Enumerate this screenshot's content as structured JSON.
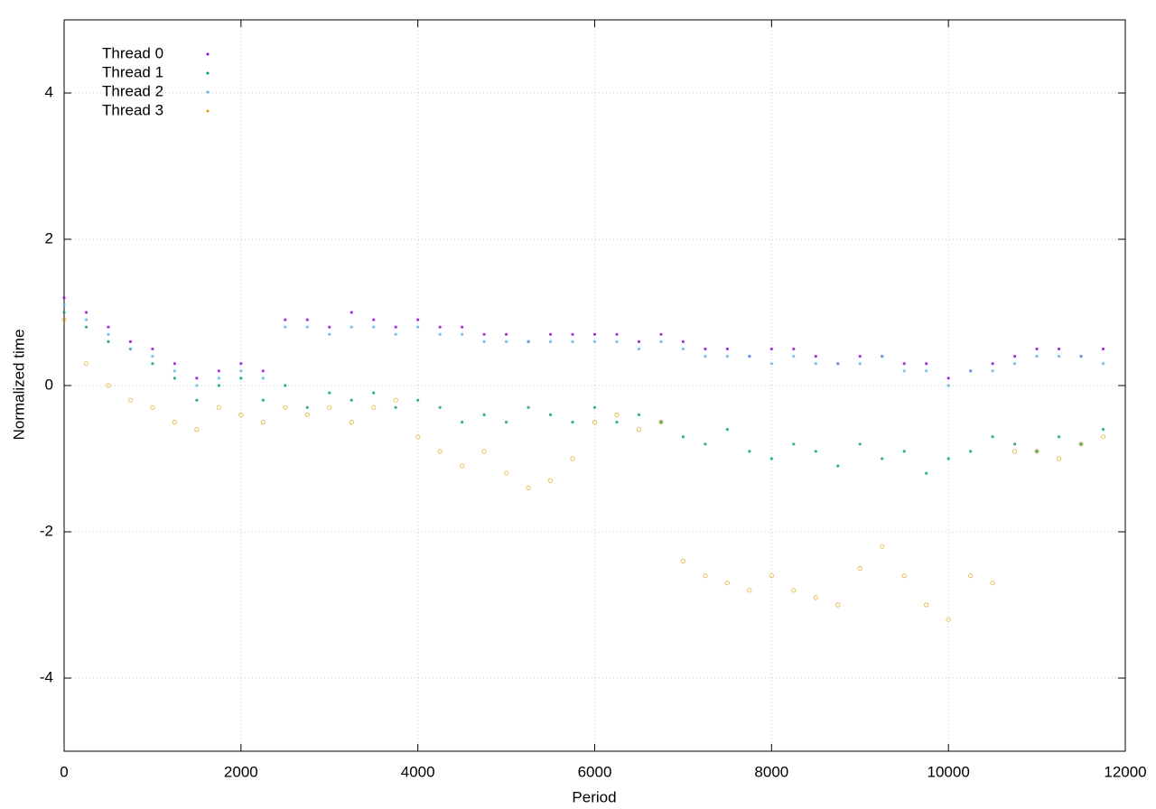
{
  "chart_data": {
    "type": "scatter",
    "x_label": "Period",
    "y_label": "Normalized time",
    "xlim": [
      0,
      12000
    ],
    "ylim": [
      -5,
      5
    ],
    "xticks": [
      0,
      2000,
      4000,
      6000,
      8000,
      10000,
      12000
    ],
    "yticks": [
      -4,
      -2,
      0,
      2,
      4
    ],
    "grid": true,
    "legend": "top-left",
    "x": [
      0,
      250,
      500,
      750,
      1000,
      1250,
      1500,
      1750,
      2000,
      2250,
      2500,
      2750,
      3000,
      3250,
      3500,
      3750,
      4000,
      4250,
      4500,
      4750,
      5000,
      5250,
      5500,
      5750,
      6000,
      6250,
      6500,
      6750,
      7000,
      7250,
      7500,
      7750,
      8000,
      8250,
      8500,
      8750,
      9000,
      9250,
      9500,
      9750,
      10000,
      10250,
      10500,
      10750,
      11000,
      11250,
      11500,
      11750
    ],
    "series": [
      {
        "name": "Thread 0",
        "color": "#9400d3",
        "values": [
          1.2,
          1.0,
          0.8,
          0.6,
          0.5,
          0.3,
          0.1,
          0.2,
          0.3,
          0.2,
          0.9,
          0.9,
          0.8,
          1.0,
          0.9,
          0.8,
          0.9,
          0.8,
          0.8,
          0.7,
          0.7,
          0.6,
          0.7,
          0.7,
          0.7,
          0.7,
          0.6,
          0.7,
          0.6,
          0.5,
          0.5,
          0.4,
          0.5,
          0.5,
          0.4,
          0.3,
          0.4,
          0.4,
          0.3,
          0.3,
          0.1,
          0.2,
          0.3,
          0.4,
          0.5,
          0.5,
          0.4,
          0.5
        ]
      },
      {
        "name": "Thread 1",
        "color": "#009e73",
        "values": [
          1.0,
          0.8,
          0.6,
          0.5,
          0.3,
          0.1,
          -0.2,
          0.0,
          0.1,
          -0.2,
          0.0,
          -0.3,
          -0.1,
          -0.2,
          -0.1,
          -0.3,
          -0.2,
          -0.3,
          -0.5,
          -0.4,
          -0.5,
          -0.3,
          -0.4,
          -0.5,
          -0.3,
          -0.5,
          -0.4,
          -0.5,
          -0.7,
          -0.8,
          -0.6,
          -0.9,
          -1.0,
          -0.8,
          -0.9,
          -1.1,
          -0.8,
          -1.0,
          -0.9,
          -1.2,
          -1.0,
          -0.9,
          -0.7,
          -0.8,
          -0.9,
          -0.7,
          -0.8,
          -0.6
        ]
      },
      {
        "name": "Thread 2",
        "color": "#56b4e9",
        "values": [
          1.1,
          0.9,
          0.7,
          0.5,
          0.4,
          0.2,
          0.0,
          0.1,
          0.2,
          0.1,
          0.8,
          0.8,
          0.7,
          0.8,
          0.8,
          0.7,
          0.8,
          0.7,
          0.7,
          0.6,
          0.6,
          0.6,
          0.6,
          0.6,
          0.6,
          0.6,
          0.5,
          0.6,
          0.5,
          0.4,
          0.4,
          0.4,
          0.3,
          0.4,
          0.3,
          0.3,
          0.3,
          0.4,
          0.2,
          0.2,
          0.0,
          0.2,
          0.2,
          0.3,
          0.4,
          0.4,
          0.4,
          0.3
        ]
      },
      {
        "name": "Thread 3",
        "color": "#e69f00",
        "values": [
          0.9,
          0.3,
          0.0,
          -0.2,
          -0.3,
          -0.5,
          -0.6,
          -0.3,
          -0.4,
          -0.5,
          -0.3,
          -0.4,
          -0.3,
          -0.5,
          -0.3,
          -0.2,
          -0.7,
          -0.9,
          -1.1,
          -0.9,
          -1.2,
          -1.4,
          -1.3,
          -1.0,
          -0.5,
          -0.4,
          -0.6,
          -0.5,
          -2.4,
          -2.6,
          -2.7,
          -2.8,
          -2.6,
          -2.8,
          -2.9,
          -3.0,
          -2.5,
          -2.2,
          -2.6,
          -3.0,
          -3.2,
          -2.6,
          -2.7,
          -0.9,
          -0.9,
          -1.0,
          -0.8,
          -0.7
        ]
      }
    ]
  }
}
